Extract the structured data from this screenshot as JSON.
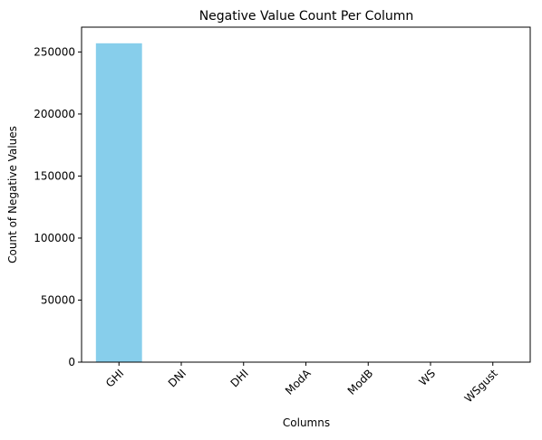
{
  "chart_data": {
    "type": "bar",
    "title": "Negative Value Count Per Column",
    "xlabel": "Columns",
    "ylabel": "Count of Negative Values",
    "categories": [
      "GHI",
      "DNI",
      "DHI",
      "ModA",
      "ModB",
      "WS",
      "WSgust"
    ],
    "values": [
      257000,
      0,
      0,
      0,
      0,
      0,
      0
    ],
    "ylim": [
      0,
      270000
    ],
    "yticks": [
      0,
      50000,
      100000,
      150000,
      200000,
      250000
    ],
    "bar_color": "#87ceeb",
    "grid": false,
    "legend": "none",
    "xtick_rotation": "45deg"
  }
}
